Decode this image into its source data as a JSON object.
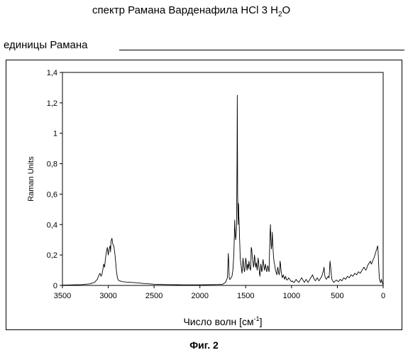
{
  "header": {
    "title_text": "спектр Рамана Варденафила HCl 3 H",
    "title_sub": "2",
    "title_tail": "O",
    "units_label": "единицы Рамана"
  },
  "figure": {
    "caption": "Фиг. 2"
  },
  "chart_data": {
    "type": "line",
    "title": "",
    "xlabel": "Число волн [см",
    "xlabel_sup": "-1",
    "xlabel_tail": "]",
    "ylabel": "Raman Units",
    "xlim": [
      3500,
      0
    ],
    "ylim": [
      0,
      1.4
    ],
    "x_reversed": true,
    "grid": false,
    "line_color": "#000000",
    "xticks": [
      3500,
      3000,
      2500,
      2000,
      1500,
      1000,
      500,
      0
    ],
    "xtick_labels": [
      "3500",
      "3000",
      "2500",
      "2000",
      "1500",
      "1000",
      "500",
      "0"
    ],
    "yticks": [
      0,
      0.2,
      0.4,
      0.6,
      0.8,
      1.0,
      1.2,
      1.4
    ],
    "ytick_labels": [
      "0",
      "0,2",
      "0,4",
      "0,6",
      "0,8",
      "1",
      "1,2",
      "1,4"
    ],
    "series": [
      {
        "x": [
          3500,
          3300,
          3200,
          3150,
          3120,
          3100,
          3090,
          3080,
          3070,
          3060,
          3050,
          3040,
          3030,
          3020,
          3010,
          3000,
          2990,
          2980,
          2975,
          2970,
          2965,
          2960,
          2955,
          2950,
          2940,
          2930,
          2920,
          2910,
          2900,
          2890,
          2880,
          2870,
          2860,
          2850,
          2800,
          2750,
          2700,
          2650,
          2600,
          2550,
          2500,
          2400,
          2300,
          2200,
          2100,
          2000,
          1900,
          1800,
          1750,
          1720,
          1700,
          1690,
          1685,
          1680,
          1675,
          1670,
          1660,
          1650,
          1640,
          1630,
          1625,
          1620,
          1615,
          1610,
          1605,
          1600,
          1598,
          1595,
          1592,
          1590,
          1588,
          1585,
          1582,
          1580,
          1577,
          1575,
          1572,
          1570,
          1568,
          1565,
          1562,
          1560,
          1555,
          1550,
          1545,
          1540,
          1535,
          1530,
          1525,
          1520,
          1515,
          1510,
          1505,
          1500,
          1495,
          1490,
          1485,
          1480,
          1475,
          1470,
          1465,
          1460,
          1455,
          1450,
          1445,
          1440,
          1435,
          1430,
          1425,
          1420,
          1415,
          1410,
          1405,
          1400,
          1395,
          1390,
          1385,
          1380,
          1375,
          1370,
          1365,
          1360,
          1355,
          1350,
          1345,
          1340,
          1335,
          1330,
          1325,
          1320,
          1315,
          1310,
          1305,
          1300,
          1295,
          1290,
          1285,
          1280,
          1275,
          1270,
          1265,
          1260,
          1255,
          1250,
          1245,
          1240,
          1235,
          1230,
          1225,
          1220,
          1215,
          1210,
          1205,
          1200,
          1195,
          1190,
          1185,
          1180,
          1175,
          1170,
          1165,
          1160,
          1155,
          1150,
          1145,
          1140,
          1135,
          1130,
          1125,
          1120,
          1115,
          1110,
          1105,
          1100,
          1095,
          1090,
          1085,
          1080,
          1075,
          1070,
          1065,
          1060,
          1055,
          1050,
          1040,
          1030,
          1020,
          1010,
          1000,
          990,
          980,
          970,
          960,
          950,
          940,
          930,
          920,
          910,
          900,
          890,
          880,
          870,
          860,
          850,
          840,
          830,
          820,
          810,
          800,
          790,
          780,
          770,
          760,
          750,
          740,
          730,
          720,
          710,
          700,
          690,
          680,
          670,
          660,
          650,
          645,
          640,
          635,
          630,
          620,
          610,
          600,
          590,
          580,
          570,
          560,
          550,
          540,
          530,
          520,
          510,
          500,
          490,
          480,
          470,
          460,
          450,
          440,
          430,
          420,
          410,
          400,
          390,
          380,
          370,
          360,
          350,
          340,
          330,
          320,
          310,
          300,
          290,
          280,
          270,
          260,
          250,
          240,
          230,
          220,
          210,
          200,
          190,
          180,
          170,
          160,
          150,
          140,
          130,
          120,
          110,
          100,
          95,
          90,
          85,
          80,
          75,
          70,
          65,
          60,
          55,
          50,
          45,
          40,
          35,
          30,
          25,
          20,
          15,
          10,
          5,
          0
        ],
        "y": [
          0.002,
          0.005,
          0.01,
          0.02,
          0.04,
          0.07,
          0.08,
          0.06,
          0.07,
          0.1,
          0.14,
          0.12,
          0.18,
          0.22,
          0.25,
          0.2,
          0.24,
          0.26,
          0.22,
          0.29,
          0.3,
          0.31,
          0.29,
          0.27,
          0.26,
          0.22,
          0.16,
          0.09,
          0.05,
          0.035,
          0.03,
          0.028,
          0.028,
          0.025,
          0.022,
          0.02,
          0.018,
          0.015,
          0.012,
          0.01,
          0.008,
          0.006,
          0.005,
          0.004,
          0.004,
          0.004,
          0.005,
          0.006,
          0.008,
          0.02,
          0.05,
          0.21,
          0.15,
          0.05,
          0.04,
          0.04,
          0.05,
          0.06,
          0.1,
          0.2,
          0.3,
          0.43,
          0.35,
          0.3,
          0.33,
          0.38,
          0.55,
          0.8,
          1.25,
          0.95,
          0.6,
          0.48,
          0.4,
          0.54,
          0.52,
          0.45,
          0.42,
          0.38,
          0.32,
          0.28,
          0.22,
          0.18,
          0.15,
          0.13,
          0.1,
          0.08,
          0.12,
          0.18,
          0.15,
          0.12,
          0.09,
          0.1,
          0.14,
          0.18,
          0.16,
          0.12,
          0.1,
          0.14,
          0.13,
          0.11,
          0.16,
          0.14,
          0.12,
          0.1,
          0.11,
          0.25,
          0.24,
          0.2,
          0.17,
          0.15,
          0.12,
          0.14,
          0.2,
          0.18,
          0.14,
          0.12,
          0.15,
          0.13,
          0.1,
          0.13,
          0.18,
          0.16,
          0.12,
          0.08,
          0.06,
          0.1,
          0.14,
          0.12,
          0.09,
          0.1,
          0.15,
          0.17,
          0.14,
          0.12,
          0.1,
          0.12,
          0.14,
          0.12,
          0.1,
          0.09,
          0.11,
          0.13,
          0.12,
          0.1,
          0.09,
          0.22,
          0.33,
          0.4,
          0.3,
          0.24,
          0.27,
          0.35,
          0.28,
          0.22,
          0.18,
          0.15,
          0.14,
          0.12,
          0.1,
          0.09,
          0.08,
          0.07,
          0.1,
          0.12,
          0.1,
          0.08,
          0.07,
          0.09,
          0.16,
          0.14,
          0.1,
          0.08,
          0.06,
          0.05,
          0.06,
          0.07,
          0.06,
          0.05,
          0.04,
          0.05,
          0.06,
          0.05,
          0.04,
          0.035,
          0.04,
          0.05,
          0.04,
          0.03,
          0.025,
          0.03,
          0.02,
          0.02,
          0.03,
          0.04,
          0.03,
          0.025,
          0.02,
          0.03,
          0.04,
          0.05,
          0.04,
          0.03,
          0.02,
          0.03,
          0.04,
          0.03,
          0.02,
          0.03,
          0.04,
          0.05,
          0.06,
          0.07,
          0.05,
          0.04,
          0.03,
          0.04,
          0.05,
          0.04,
          0.03,
          0.04,
          0.05,
          0.06,
          0.08,
          0.1,
          0.12,
          0.08,
          0.06,
          0.05,
          0.04,
          0.05,
          0.06,
          0.05,
          0.16,
          0.1,
          0.04,
          0.03,
          0.02,
          0.025,
          0.03,
          0.035,
          0.03,
          0.025,
          0.03,
          0.04,
          0.035,
          0.03,
          0.04,
          0.05,
          0.045,
          0.04,
          0.05,
          0.06,
          0.055,
          0.05,
          0.06,
          0.07,
          0.065,
          0.06,
          0.07,
          0.08,
          0.075,
          0.07,
          0.08,
          0.09,
          0.085,
          0.08,
          0.09,
          0.1,
          0.11,
          0.12,
          0.11,
          0.1,
          0.11,
          0.13,
          0.14,
          0.15,
          0.16,
          0.14,
          0.15,
          0.17,
          0.18,
          0.19,
          0.2,
          0.21,
          0.22,
          0.23,
          0.24,
          0.25,
          0.26,
          0.22,
          0.15,
          0.08,
          0.04,
          0.03,
          0.02,
          0.02,
          0.04,
          0.03,
          0.02,
          0.01,
          0.005
        ]
      }
    ]
  }
}
